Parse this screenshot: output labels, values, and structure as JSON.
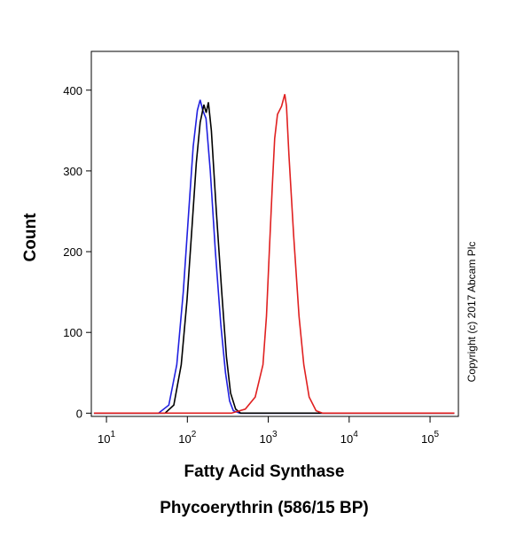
{
  "chart_data": {
    "type": "line",
    "x_scale": "log",
    "ylabel": "Count",
    "xlabel": "Fatty Acid Synthase",
    "xlabel2": "Phycoerythrin (586/15 BP)",
    "annotation": "Copyright (c) 2017 Abcam Plc",
    "xlim": [
      6.5,
      224000
    ],
    "ylim": [
      -4,
      448
    ],
    "xticks": [
      {
        "value": 10,
        "label": "10",
        "power": "1"
      },
      {
        "value": 100,
        "label": "10",
        "power": "2"
      },
      {
        "value": 1000,
        "label": "10",
        "power": "3"
      },
      {
        "value": 10000,
        "label": "10",
        "power": "4"
      },
      {
        "value": 100000,
        "label": "10",
        "power": "5"
      }
    ],
    "yticks": [
      0,
      100,
      200,
      300,
      400
    ],
    "series": [
      {
        "color": "#2020e0",
        "x": [
          7,
          44,
          59,
          74,
          89,
          104,
          118,
          133,
          144,
          155,
          170,
          192,
          222,
          259,
          296,
          333,
          370,
          444,
          200000
        ],
        "values": [
          0,
          0,
          10,
          60,
          150,
          250,
          330,
          375,
          388,
          375,
          365,
          300,
          200,
          110,
          50,
          15,
          3,
          0,
          0
        ]
      },
      {
        "color": "#000000",
        "x": [
          7,
          53,
          68,
          84,
          99,
          114,
          129,
          144,
          160,
          171,
          182,
          198,
          228,
          266,
          304,
          342,
          395,
          456,
          200000
        ],
        "values": [
          0,
          0,
          10,
          60,
          140,
          230,
          310,
          360,
          382,
          372,
          385,
          350,
          250,
          150,
          70,
          25,
          5,
          0,
          0
        ]
      },
      {
        "color": "#e02020",
        "x": [
          7,
          350,
          520,
          690,
          860,
          950,
          1030,
          1120,
          1200,
          1300,
          1460,
          1600,
          1680,
          1800,
          2060,
          2400,
          2750,
          3200,
          3900,
          4700,
          200000
        ],
        "values": [
          0,
          0,
          5,
          20,
          60,
          120,
          200,
          280,
          340,
          370,
          380,
          395,
          380,
          320,
          220,
          120,
          60,
          20,
          3,
          0,
          0
        ]
      }
    ]
  }
}
